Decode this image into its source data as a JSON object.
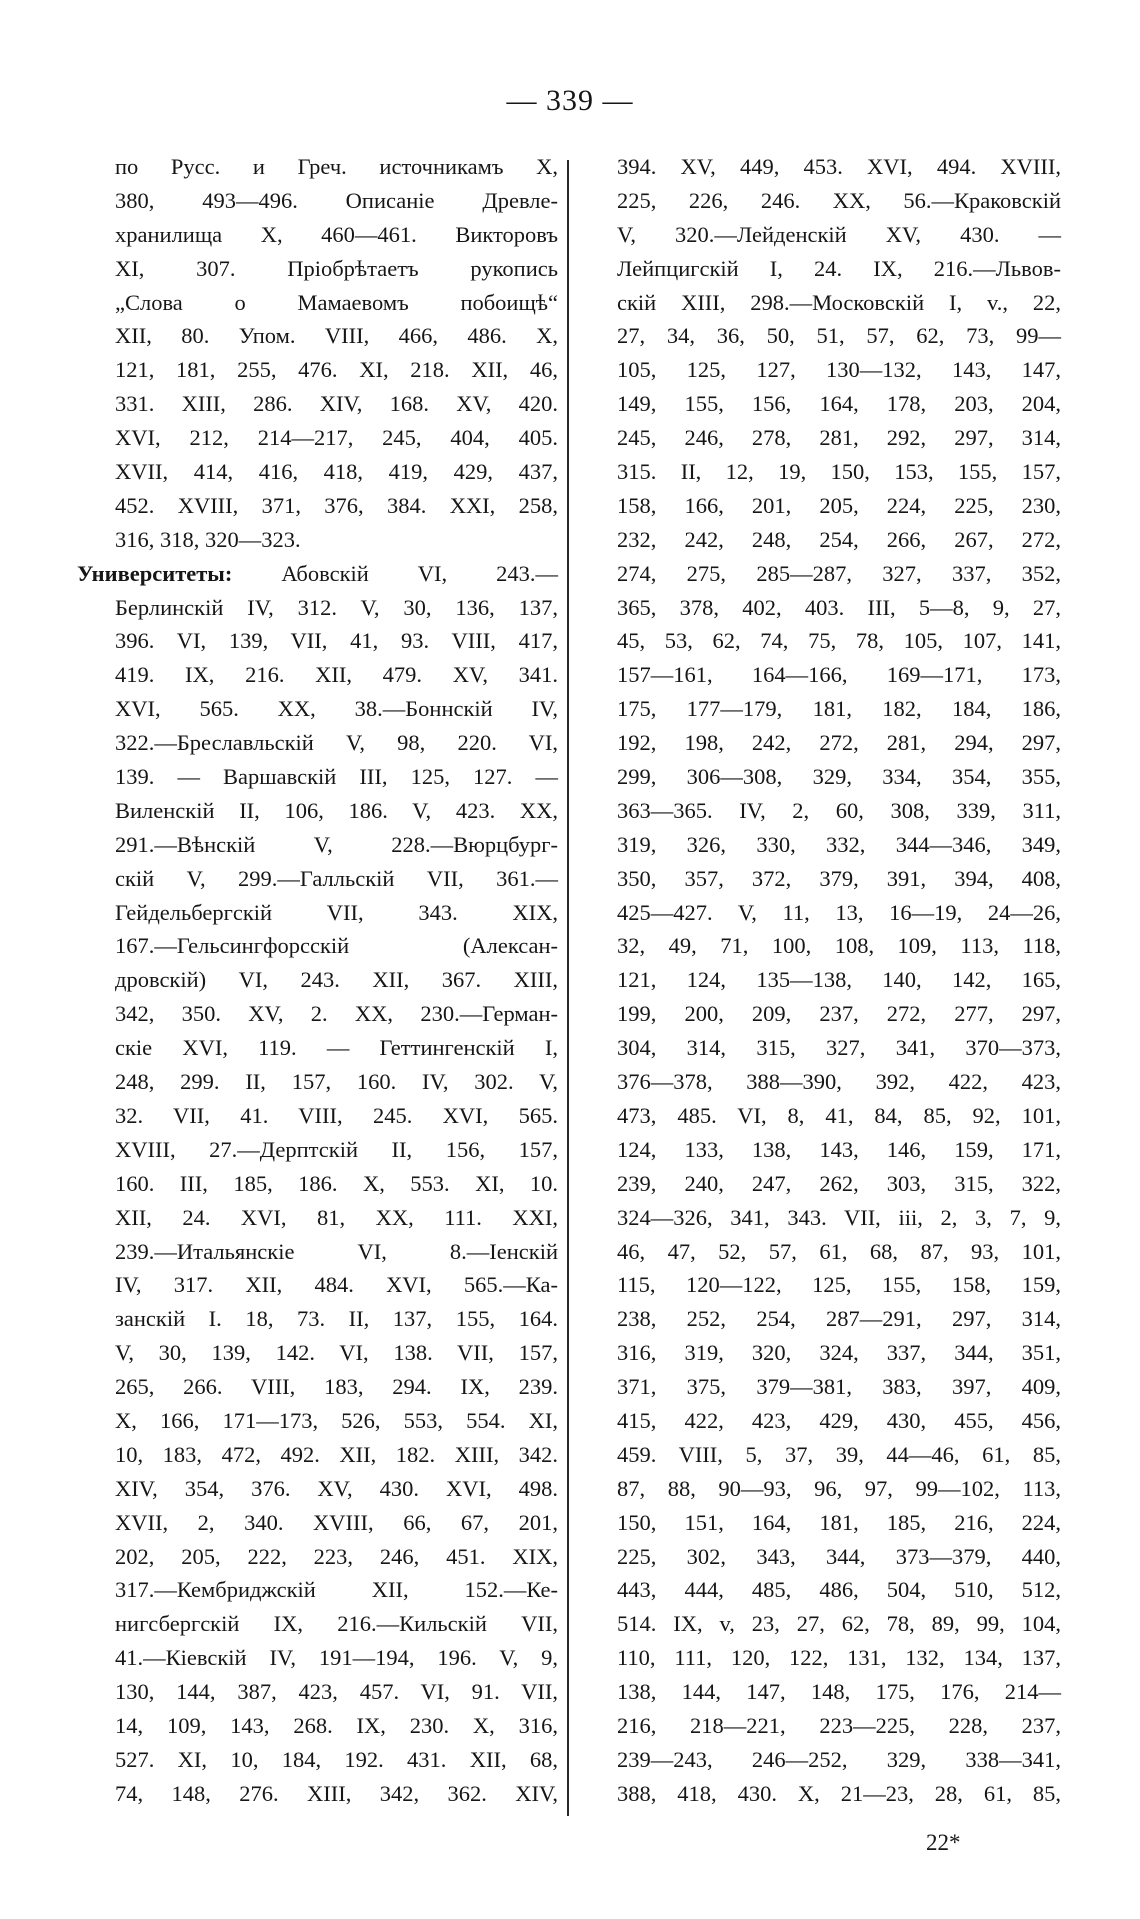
{
  "header": {
    "page_number": "— 339 —"
  },
  "left_column": {
    "lines": [
      "по Русс. и Греч. источникамъ X,",
      "380, 493—496. Описаніе Древле-",
      "хранилища X, 460—461. Викторовъ",
      "XI, 307. Пріобрѣтаетъ рукопись",
      "„Слова о Мамаевомъ побоищѣ“",
      "XII, 80. Упом. VIII, 466, 486. X,",
      "121, 181, 255, 476. XI, 218. XII, 46,",
      "331. XIII, 286. XIV, 168. XV, 420.",
      "XVI, 212, 214—217, 245, 404, 405.",
      "XVII, 414, 416, 418, 419, 429, 437,",
      "452. XVIII, 371, 376, 384. XXI, 258,",
      "316, 318, 320—323.",
      "Абовскій VI, 243.—",
      "Берлинскій IV, 312. V, 30, 136, 137,",
      "396. VI, 139, VII, 41, 93. VIII, 417,",
      "419. IX, 216. XII, 479. XV, 341.",
      "XVI, 565. XX, 38.—Боннскій IV,",
      "322.—Бреславльскій V, 98, 220. VI,",
      "139. — Варшавскій III, 125, 127. —",
      "Виленскій II, 106, 186. V, 423. XX,",
      "291.—Вѣнскій V, 228.—Вюрцбург-",
      "скій V, 299.—Галльскій VII, 361.—",
      "Гейдельбергскій VII, 343. XIX,",
      "167.—Гельсингфорсскій (Алексан-",
      "дровскій) VI, 243. XII, 367. XIII,",
      "342, 350. XV, 2. XX, 230.—Герман-",
      "скіе XVI, 119. — Геттингенскій I,",
      "248, 299. II, 157, 160. IV, 302. V,",
      "32. VII, 41. VIII, 245. XVI, 565.",
      "XVIII, 27.—Дерптскій II, 156, 157,",
      "160. III, 185, 186. X, 553. XI, 10.",
      "XII, 24. XVI, 81, XX, 111. XXI,",
      "239.—Итальянскіе VI, 8.—Іенскій",
      "IV, 317. XII, 484. XVI, 565.—Ка-",
      "занскій I. 18, 73. II, 137, 155, 164.",
      "V, 30, 139, 142. VI, 138. VII, 157,",
      "265, 266. VIII, 183, 294. IX, 239.",
      "X, 166, 171—173, 526, 553, 554. XI,",
      "10, 183, 472, 492. XII, 182. XIII, 342.",
      "XIV, 354, 376. XV, 430. XVI, 498.",
      "XVII, 2, 340. XVIII, 66, 67, 201,",
      "202, 205, 222, 223, 246, 451. XIX,",
      "317.—Кембриджскій XII, 152.—Ке-",
      "нигсбергскій IX, 216.—Кильскій VII,",
      "41.—Кіевскій IV, 191—194, 196. V, 9,",
      "130, 144, 387, 423, 457. VI, 91. VII,",
      "14, 109, 143, 268. IX, 230. X, 316,",
      "527. XI, 10, 184, 192. 431. XII, 68,",
      "74, 148, 276. XIII, 342, 362. XIV,"
    ],
    "heading_term": "Университеты:"
  },
  "right_column": {
    "lines": [
      "394. XV, 449, 453. XVI, 494. XVIII,",
      "225, 226, 246. XX, 56.—Краковскій",
      "V, 320.—Лейденскій XV, 430. —",
      "Лейпцигскій I, 24. IX, 216.—Львов-",
      "скій XIII, 298.—Московскій I, v., 22,",
      "27, 34, 36, 50, 51, 57, 62, 73, 99—",
      "105, 125, 127, 130—132, 143, 147,",
      "149, 155, 156, 164, 178, 203, 204,",
      "245, 246, 278, 281, 292, 297, 314,",
      "315. II, 12, 19, 150, 153, 155, 157,",
      "158, 166, 201, 205, 224, 225, 230,",
      "232, 242, 248, 254, 266, 267, 272,",
      "274, 275, 285—287, 327, 337, 352,",
      "365, 378, 402, 403. III, 5—8, 9, 27,",
      "45, 53, 62, 74, 75, 78, 105, 107, 141,",
      "157—161, 164—166, 169—171, 173,",
      "175, 177—179, 181, 182, 184, 186,",
      "192, 198, 242, 272, 281, 294, 297,",
      "299, 306—308, 329, 334, 354, 355,",
      "363—365. IV, 2, 60, 308, 339, 311,",
      "319, 326, 330, 332, 344—346, 349,",
      "350, 357, 372, 379, 391, 394, 408,",
      "425—427. V, 11, 13, 16—19, 24—26,",
      "32, 49, 71, 100, 108, 109, 113, 118,",
      "121, 124, 135—138, 140, 142, 165,",
      "199, 200, 209, 237, 272, 277, 297,",
      "304, 314, 315, 327, 341, 370—373,",
      "376—378, 388—390, 392, 422, 423,",
      "473, 485. VI, 8, 41, 84, 85, 92, 101,",
      "124, 133, 138, 143, 146, 159, 171,",
      "239, 240, 247, 262, 303, 315, 322,",
      "324—326, 341, 343. VII, iii, 2, 3, 7, 9,",
      "46, 47, 52, 57, 61, 68, 87, 93, 101,",
      "115, 120—122, 125, 155, 158, 159,",
      "238, 252, 254, 287—291, 297, 314,",
      "316, 319, 320, 324, 337, 344, 351,",
      "371, 375, 379—381, 383, 397, 409,",
      "415, 422, 423, 429, 430, 455, 456,",
      "459. VIII, 5, 37, 39, 44—46, 61, 85,",
      "87, 88, 90—93, 96, 97, 99—102, 113,",
      "150, 151, 164, 181, 185, 216, 224,",
      "225, 302, 343, 344, 373—379, 440,",
      "443, 444, 485, 486, 504, 510, 512,",
      "514. IX, v, 23, 27, 62, 78, 89, 99, 104,",
      "110, 111, 120, 122, 131, 132, 134, 137,",
      "138, 144, 147, 148, 175, 176, 214—",
      "216, 218—221, 223—225, 228, 237,",
      "239—243, 246—252, 329, 338—341,",
      "388, 418, 430. X, 21—23, 28, 61, 85,"
    ]
  },
  "footer": {
    "signature_mark": "22*"
  }
}
